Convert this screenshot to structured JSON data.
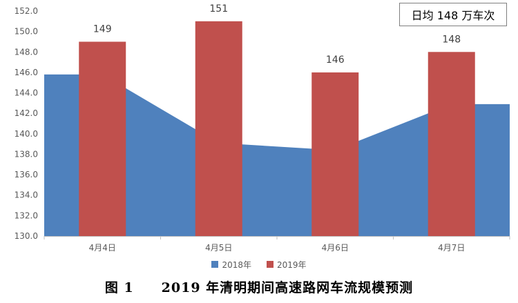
{
  "chart_data": {
    "type": "bar",
    "categories": [
      "4月4日",
      "4月5日",
      "4月6日",
      "4月7日"
    ],
    "series": [
      {
        "name": "2018年",
        "type": "area",
        "color": "#4f81bd",
        "values": [
          145.8,
          139.1,
          138.4,
          142.9
        ]
      },
      {
        "name": "2019年",
        "type": "bar",
        "color": "#c0504d",
        "values": [
          149,
          151,
          146,
          148
        ]
      }
    ],
    "data_labels": [
      "149",
      "151",
      "146",
      "148"
    ],
    "ylim": [
      130,
      152
    ],
    "yticks": [
      "130.0",
      "132.0",
      "134.0",
      "136.0",
      "138.0",
      "140.0",
      "142.0",
      "144.0",
      "146.0",
      "148.0",
      "150.0",
      "152.0"
    ],
    "annotation": "日均 148 万车次",
    "legend_position": "bottom",
    "grid": false
  },
  "caption": "图 1　　2019 年清明期间高速路网车流规模预测"
}
